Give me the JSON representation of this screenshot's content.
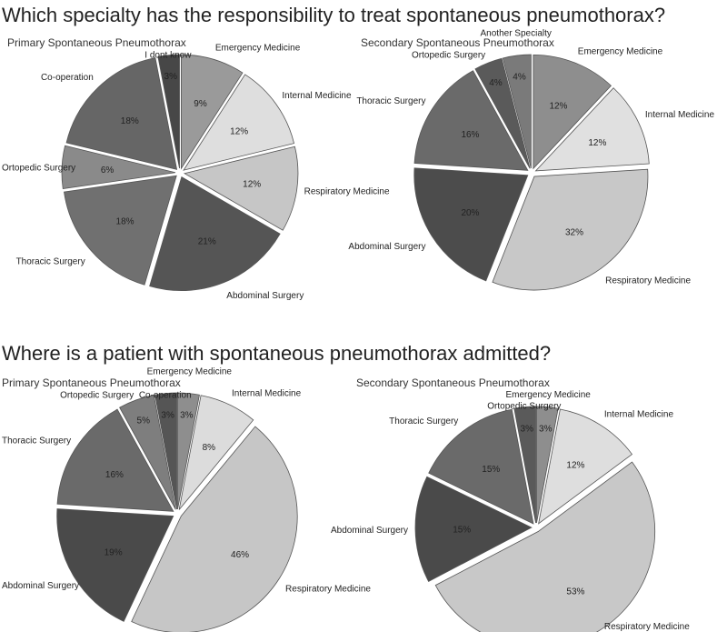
{
  "questions": [
    "Which specialty has the responsibility  to treat spontaneous pneumothorax?",
    "Where is a patient with  spontaneous pneumothorax admitted?"
  ],
  "chart_data": [
    {
      "type": "pie",
      "title": "Primary Spontaneous Pneumothorax",
      "categories": [
        "Emergency Medicine",
        "Internal Medicine",
        "Respiratory Medicine",
        "Abdominal Surgery",
        "Thoracic Surgery",
        "Ortopedic Surgery",
        "Co-operation",
        "I dont know"
      ],
      "values": [
        9,
        12,
        12,
        21,
        18,
        6,
        18,
        3
      ],
      "labels": [
        "9%",
        "12%",
        "12%",
        "21%",
        "18%",
        "6%",
        "18%",
        "3%"
      ],
      "colors": [
        "#9a9a9a",
        "#dedede",
        "#c6c6c6",
        "#555555",
        "#707070",
        "#8a8a8a",
        "#666666",
        "#474747"
      ]
    },
    {
      "type": "pie",
      "title": "Secondary Spontaneous Pneumothorax",
      "categories": [
        "Emergency Medicine",
        "Internal Medicine",
        "Respiratory Medicine",
        "Abdominal Surgery",
        "Thoracic Surgery",
        "Ortopedic Surgery",
        "Another Specialty"
      ],
      "values": [
        12,
        12,
        32,
        20,
        16,
        4,
        4
      ],
      "labels": [
        "12%",
        "12%",
        "32%",
        "20%",
        "16%",
        "4%",
        "4%"
      ],
      "colors": [
        "#8e8e8e",
        "#e0e0e0",
        "#c8c8c8",
        "#4c4c4c",
        "#6a6a6a",
        "#5a5a5a",
        "#7a7a7a"
      ]
    },
    {
      "type": "pie",
      "title": "Primary Spontaneous Pneumothorax",
      "categories": [
        "Emergency Medicine",
        "Internal Medicine",
        "Respiratory Medicine",
        "Abdominal Surgery",
        "Thoracic Surgery",
        "Ortopedic Surgery",
        "Co-operation"
      ],
      "values": [
        3,
        8,
        46,
        19,
        16,
        5,
        3
      ],
      "labels": [
        "3%",
        "8%",
        "46%",
        "19%",
        "16%",
        "5%",
        "3%"
      ],
      "colors": [
        "#8e8e8e",
        "#dcdcdc",
        "#c6c6c6",
        "#4a4a4a",
        "#6a6a6a",
        "#7e7e7e",
        "#555555"
      ]
    },
    {
      "type": "pie",
      "title": "Secondary Spontaneous Pneumothorax",
      "categories": [
        "Emergency Medicine",
        "Internal Medicine",
        "Respiratory Medicine",
        "Abdominal Surgery",
        "Thoracic Surgery",
        "Ortopedic Surgery"
      ],
      "values": [
        3,
        12,
        53,
        15,
        15,
        3
      ],
      "labels": [
        "3%",
        "12%",
        "53%",
        "15%",
        "15%",
        "3%"
      ],
      "colors": [
        "#8e8e8e",
        "#dedede",
        "#c8c8c8",
        "#4a4a4a",
        "#6a6a6a",
        "#5a5a5a"
      ]
    }
  ]
}
